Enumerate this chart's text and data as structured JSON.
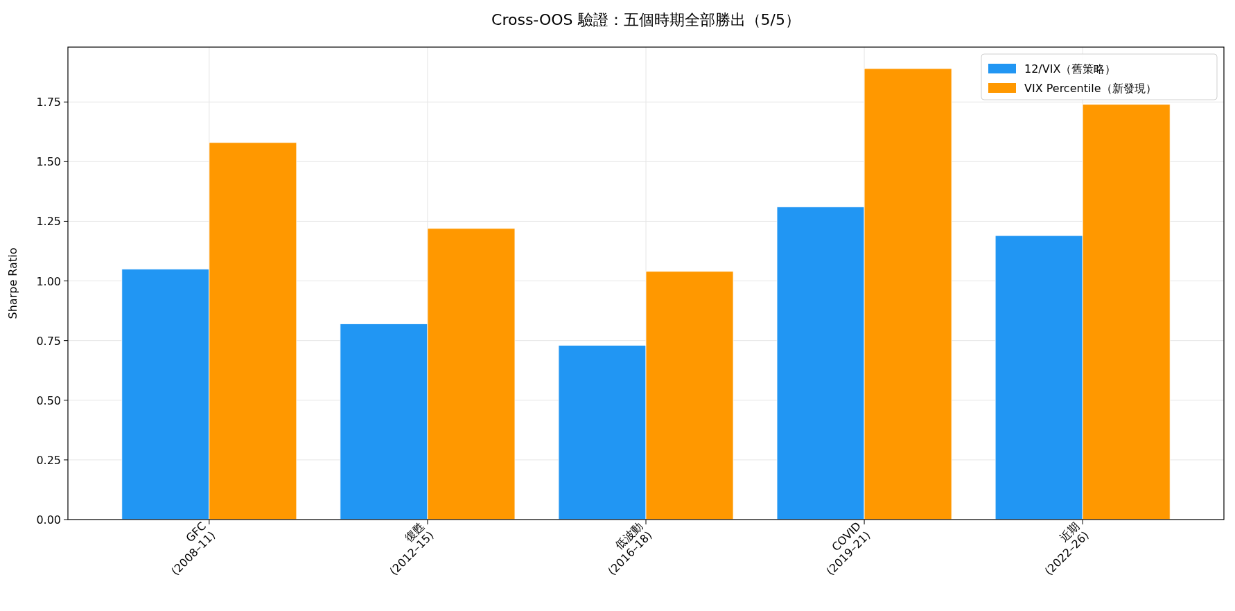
{
  "chart_data": {
    "type": "bar",
    "title": "Cross-OOS 驗證：五個時期全部勝出（5/5）",
    "ylabel": "Sharpe Ratio",
    "categories": [
      "GFC\n(2008–11)",
      "復甦\n(2012–15)",
      "低波動\n(2016–18)",
      "COVID\n(2019–21)",
      "近期\n(2022–26)"
    ],
    "series": [
      {
        "name": "12/VIX（舊策略）",
        "color": "#2196f3",
        "values": [
          1.05,
          0.82,
          0.73,
          1.31,
          1.19
        ]
      },
      {
        "name": "VIX Percentile（新發現）",
        "color": "#ff9800",
        "values": [
          1.58,
          1.22,
          1.04,
          1.89,
          1.74
        ]
      }
    ],
    "ylim": [
      0,
      1.98
    ],
    "yticks": [
      {
        "value": 0,
        "label": "0.00"
      },
      {
        "value": 0.25,
        "label": "0.25"
      },
      {
        "value": 0.5,
        "label": "0.50"
      },
      {
        "value": 0.75,
        "label": "0.75"
      },
      {
        "value": 1,
        "label": "1.00"
      },
      {
        "value": 1.25,
        "label": "1.25"
      },
      {
        "value": 1.5,
        "label": "1.50"
      },
      {
        "value": 1.75,
        "label": "1.75"
      }
    ],
    "grid": true,
    "legend": "top right"
  }
}
